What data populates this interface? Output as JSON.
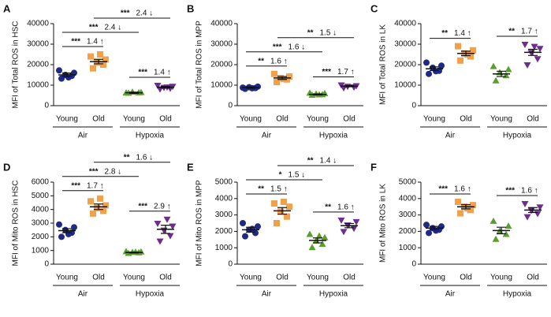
{
  "chart_data": [
    {
      "type": "dot",
      "panel": "A",
      "ylabel": "MFI of Total ROS in HSC",
      "ylim": [
        0,
        40000
      ],
      "yticks": [
        0,
        10000,
        20000,
        30000,
        40000
      ],
      "categories": [
        "Young",
        "Old",
        "Young",
        "Old"
      ],
      "groups": [
        "Air",
        "Hypoxia"
      ],
      "colors": [
        "#1f2a85",
        "#f2a04a",
        "#5b9e2f",
        "#6b2d8e"
      ],
      "markers": [
        "circle",
        "square",
        "triangle",
        "triangle-down"
      ],
      "points": [
        [
          13200,
          14500,
          15000,
          16000,
          17200,
          13800
        ],
        [
          18200,
          20000,
          21000,
          22500,
          24000,
          25000
        ],
        [
          6000,
          6200,
          6500,
          6300,
          6100
        ],
        [
          8200,
          8600,
          9000,
          9500,
          10000,
          9200
        ]
      ],
      "means": [
        15000,
        21500,
        6300,
        9000
      ],
      "sem": [
        900,
        1100,
        300,
        400
      ],
      "comparisons": [
        {
          "from": 0,
          "to": 1,
          "stars": "***",
          "fold": "1.4 ↑"
        },
        {
          "from": 2,
          "to": 3,
          "stars": "***",
          "fold": "1.4 ↑"
        },
        {
          "from": 0,
          "to": 2,
          "stars": "***",
          "fold": "2.4 ↓"
        },
        {
          "from": 1,
          "to": 3,
          "stars": "***",
          "fold": "2.4 ↓"
        }
      ]
    },
    {
      "type": "dot",
      "panel": "B",
      "ylabel": "MFI of Total ROS in MPP",
      "ylim": [
        0,
        40000
      ],
      "yticks": [
        0,
        10000,
        20000,
        30000,
        40000
      ],
      "categories": [
        "Young",
        "Old",
        "Young",
        "Old"
      ],
      "groups": [
        "Air",
        "Hypoxia"
      ],
      "colors": [
        "#1f2a85",
        "#f2a04a",
        "#5b9e2f",
        "#6b2d8e"
      ],
      "markers": [
        "circle",
        "square",
        "triangle",
        "triangle-down"
      ],
      "points": [
        [
          8200,
          8600,
          9000,
          9300,
          8800,
          8500
        ],
        [
          11500,
          12800,
          13500,
          14200,
          15500,
          13000
        ],
        [
          5000,
          5300,
          5600,
          5800,
          6000,
          5200
        ],
        [
          8800,
          9200,
          9500,
          9800,
          10200
        ]
      ],
      "means": [
        8800,
        13500,
        5500,
        9500
      ],
      "sem": [
        300,
        700,
        250,
        300
      ],
      "comparisons": [
        {
          "from": 0,
          "to": 1,
          "stars": "**",
          "fold": "1.6 ↑"
        },
        {
          "from": 2,
          "to": 3,
          "stars": "***",
          "fold": "1.7 ↑"
        },
        {
          "from": 0,
          "to": 2,
          "stars": "***",
          "fold": "1.6 ↓"
        },
        {
          "from": 1,
          "to": 3,
          "stars": "**",
          "fold": "1.5 ↓"
        }
      ]
    },
    {
      "type": "dot",
      "panel": "C",
      "ylabel": "MFI of Total ROS in LK",
      "ylim": [
        0,
        40000
      ],
      "yticks": [
        0,
        10000,
        20000,
        30000,
        40000
      ],
      "categories": [
        "Young",
        "Old",
        "Young",
        "Old"
      ],
      "groups": [
        "Air",
        "Hypoxia"
      ],
      "colors": [
        "#1f2a85",
        "#f2a04a",
        "#5b9e2f",
        "#6b2d8e"
      ],
      "markers": [
        "circle",
        "square",
        "triangle",
        "triangle-down"
      ],
      "points": [
        [
          15500,
          17000,
          18500,
          19500,
          21000,
          16800
        ],
        [
          22000,
          24000,
          25500,
          27000,
          29000,
          25000
        ],
        [
          12000,
          14500,
          16000,
          17500,
          19000
        ],
        [
          20000,
          23000,
          26000,
          28000,
          30000,
          29000
        ]
      ],
      "means": [
        18000,
        25500,
        15500,
        26000
      ],
      "sem": [
        900,
        1100,
        1300,
        1500
      ],
      "comparisons": [
        {
          "from": 0,
          "to": 1,
          "stars": "**",
          "fold": "1.4 ↑"
        },
        {
          "from": 2,
          "to": 3,
          "stars": "**",
          "fold": "1.7 ↑"
        }
      ]
    },
    {
      "type": "dot",
      "panel": "D",
      "ylabel": "MFI of Mito ROS in HSC",
      "ylim": [
        0,
        6000
      ],
      "yticks": [
        0,
        1000,
        2000,
        3000,
        4000,
        5000,
        6000
      ],
      "categories": [
        "Young",
        "Old",
        "Young",
        "Old"
      ],
      "groups": [
        "Air",
        "Hypoxia"
      ],
      "colors": [
        "#1f2a85",
        "#f2a04a",
        "#5b9e2f",
        "#6b2d8e"
      ],
      "markers": [
        "circle",
        "square",
        "triangle",
        "triangle-down"
      ],
      "points": [
        [
          2000,
          2300,
          2500,
          2700,
          2900,
          2200
        ],
        [
          3700,
          3900,
          4100,
          4300,
          4600,
          4800
        ],
        [
          780,
          820,
          850,
          880,
          900,
          860
        ],
        [
          1700,
          2100,
          2500,
          2800,
          3000,
          3300
        ]
      ],
      "means": [
        2450,
        4200,
        850,
        2550
      ],
      "sem": [
        150,
        200,
        30,
        300
      ],
      "comparisons": [
        {
          "from": 0,
          "to": 1,
          "stars": "***",
          "fold": "1.7 ↑"
        },
        {
          "from": 2,
          "to": 3,
          "stars": "***",
          "fold": "2.9 ↑"
        },
        {
          "from": 0,
          "to": 2,
          "stars": "***",
          "fold": "2.8 ↓"
        },
        {
          "from": 1,
          "to": 3,
          "stars": "**",
          "fold": "1.6 ↓"
        }
      ]
    },
    {
      "type": "dot",
      "panel": "E",
      "ylabel": "MFI of Mito ROS in MPP",
      "ylim": [
        0,
        5000
      ],
      "yticks": [
        0,
        1000,
        2000,
        3000,
        4000,
        5000
      ],
      "categories": [
        "Young",
        "Old",
        "Young",
        "Old"
      ],
      "groups": [
        "Air",
        "Hypoxia"
      ],
      "colors": [
        "#1f2a85",
        "#f2a04a",
        "#5b9e2f",
        "#6b2d8e"
      ],
      "markers": [
        "circle",
        "square",
        "triangle",
        "triangle-down"
      ],
      "points": [
        [
          1700,
          1900,
          2100,
          2300,
          2500,
          2150
        ],
        [
          2500,
          2900,
          3200,
          3500,
          3700,
          3800
        ],
        [
          1000,
          1200,
          1400,
          1600,
          1800,
          1700
        ],
        [
          2000,
          2200,
          2400,
          2600,
          2700
        ]
      ],
      "means": [
        2100,
        3250,
        1450,
        2350
      ],
      "sem": [
        150,
        200,
        150,
        130
      ],
      "comparisons": [
        {
          "from": 0,
          "to": 1,
          "stars": "**",
          "fold": "1.5 ↑"
        },
        {
          "from": 2,
          "to": 3,
          "stars": "**",
          "fold": "1.6 ↑"
        },
        {
          "from": 0,
          "to": 2,
          "stars": "*",
          "fold": "1.5 ↓"
        },
        {
          "from": 1,
          "to": 3,
          "stars": "**",
          "fold": "1.4 ↓"
        }
      ]
    },
    {
      "type": "dot",
      "panel": "F",
      "ylabel": "MFI of Mito ROS in LK",
      "ylim": [
        0,
        5000
      ],
      "yticks": [
        0,
        1000,
        2000,
        3000,
        4000,
        5000
      ],
      "categories": [
        "Young",
        "Old",
        "Young",
        "Old"
      ],
      "groups": [
        "Air",
        "Hypoxia"
      ],
      "colors": [
        "#1f2a85",
        "#f2a04a",
        "#5b9e2f",
        "#6b2d8e"
      ],
      "markers": [
        "circle",
        "square",
        "triangle",
        "triangle-down"
      ],
      "points": [
        [
          1900,
          2100,
          2200,
          2300,
          2400,
          2050
        ],
        [
          3100,
          3300,
          3500,
          3600,
          3800,
          3400
        ],
        [
          1500,
          1800,
          2000,
          2300,
          2600
        ],
        [
          2900,
          3100,
          3300,
          3500,
          3700
        ]
      ],
      "means": [
        2200,
        3500,
        2050,
        3300
      ],
      "sem": [
        100,
        130,
        200,
        150
      ],
      "comparisons": [
        {
          "from": 0,
          "to": 1,
          "stars": "***",
          "fold": "1.6 ↑"
        },
        {
          "from": 2,
          "to": 3,
          "stars": "***",
          "fold": "1.6 ↑"
        }
      ]
    }
  ]
}
